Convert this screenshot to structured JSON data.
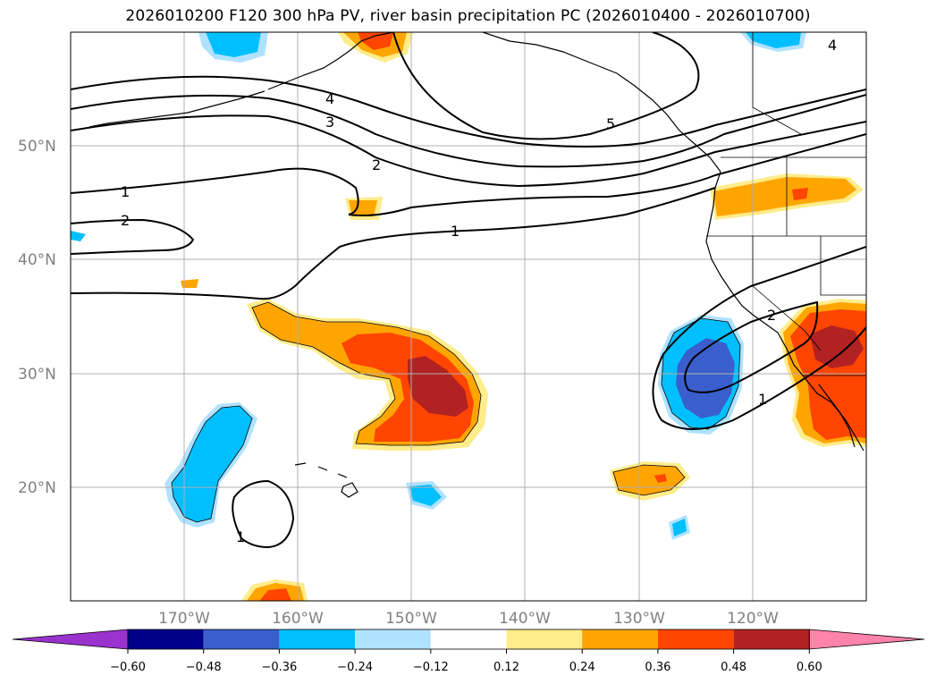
{
  "title": "2026010200 F120 300 hPa PV, river basin precipitation PC (2026010400 - 2026010700)",
  "map": {
    "projection": "PlateCarree",
    "lon_range": [
      -180,
      -110
    ],
    "lat_range": [
      10,
      60
    ],
    "lat_ticks": [
      {
        "value": 20,
        "label": "20°N"
      },
      {
        "value": 30,
        "label": "30°N"
      },
      {
        "value": 40,
        "label": "40°N"
      },
      {
        "value": 50,
        "label": "50°N"
      }
    ],
    "lon_ticks": [
      {
        "value": -170,
        "label": "170°W"
      },
      {
        "value": -160,
        "label": "160°W"
      },
      {
        "value": -150,
        "label": "150°W"
      },
      {
        "value": -140,
        "label": "140°W"
      },
      {
        "value": -130,
        "label": "130°W"
      },
      {
        "value": -120,
        "label": "120°W"
      }
    ]
  },
  "contour_labels": [
    "1",
    "1",
    "1",
    "2",
    "2",
    "2",
    "3",
    "4",
    "4",
    "5",
    "1"
  ],
  "colorbar": {
    "ticks": [
      "−0.60",
      "−0.48",
      "−0.36",
      "−0.24",
      "−0.12",
      "0.12",
      "0.24",
      "0.36",
      "0.48",
      "0.60"
    ],
    "colors": [
      "#9a32cd",
      "#00008b",
      "#3a5fcd",
      "#00bfff",
      "#b0e2ff",
      "#ffffff",
      "#ffec8b",
      "#ffa500",
      "#ff4500",
      "#b22222",
      "#ff83aa"
    ],
    "extend": "both"
  },
  "colors": {
    "pos1": "#ffec8b",
    "pos2": "#ffa500",
    "pos3": "#ff4500",
    "pos4": "#b22222",
    "neg1": "#b0e2ff",
    "neg2": "#00bfff",
    "neg3": "#3a5fcd"
  }
}
